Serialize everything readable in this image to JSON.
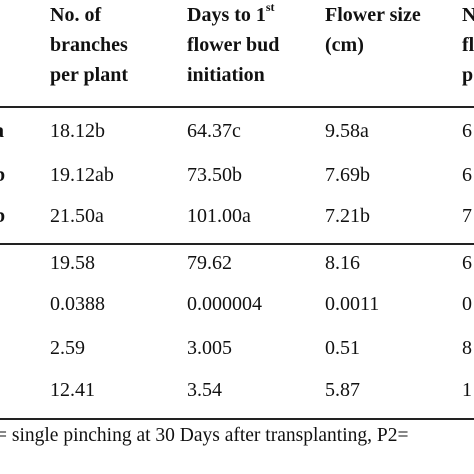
{
  "headers": {
    "branches": [
      "No. of",
      "branches",
      "per plant"
    ],
    "days": {
      "line1_pre": "Days to 1",
      "line1_sup": "st",
      "line2": "flower bud",
      "line3": "initiation"
    },
    "flower_size": [
      "Flower size",
      "(cm)"
    ],
    "cut": [
      "N",
      "fl",
      "p"
    ]
  },
  "treatment_stubs": [
    "a",
    "b",
    "b"
  ],
  "treatment_rows": [
    [
      "18.12b",
      "64.37c",
      "9.58a",
      "6"
    ],
    [
      "19.12ab",
      "73.50b",
      "7.69b",
      "6"
    ],
    [
      "21.50a",
      "101.00a",
      "7.21b",
      "7"
    ]
  ],
  "stat_rows": [
    [
      "19.58",
      "79.62",
      "8.16",
      "6"
    ],
    [
      "0.0388",
      "0.000004",
      "0.0011",
      "0"
    ],
    [
      "2.59",
      "3.005",
      "0.51",
      "8"
    ],
    [
      "12.41",
      "3.54",
      "5.87",
      "1"
    ]
  ],
  "footnote": "= single pinching at 30 Days after transplanting, P2="
}
